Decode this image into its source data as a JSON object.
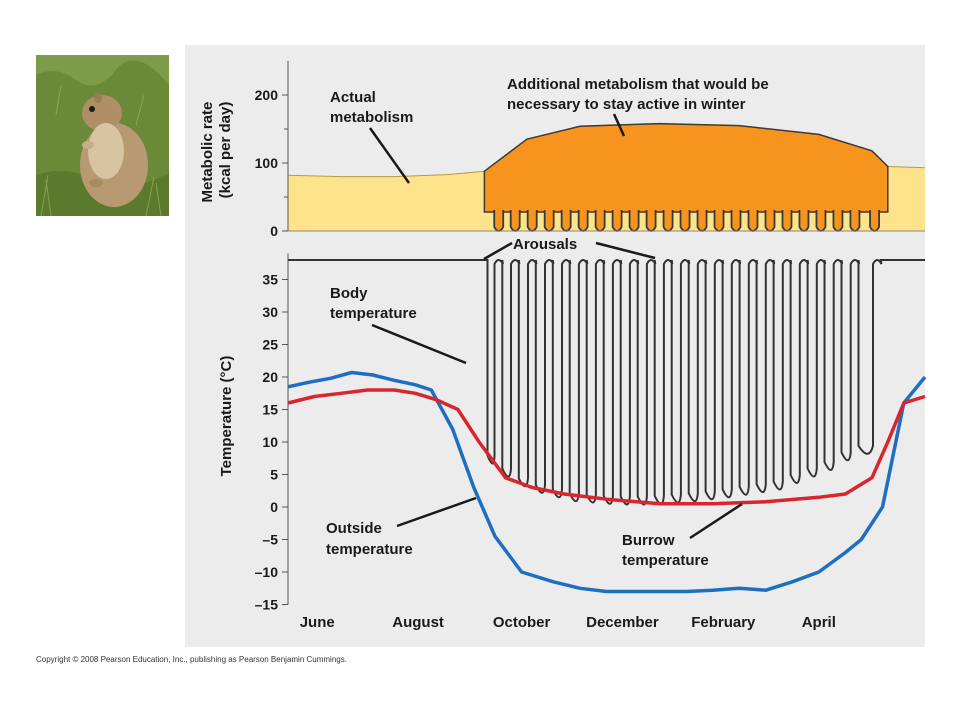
{
  "photo": {
    "subject": "ground-squirrel-photo"
  },
  "copyright": "Copyright © 2008 Pearson Education, Inc., publishing as Pearson Benjamin Cummings.",
  "colors": {
    "panel_bg": "#ececec",
    "actual_fill": "#fde38a",
    "additional_fill": "#f7941d",
    "body_line": "#333333",
    "outside_line": "#1f6fc1",
    "burrow_line": "#d8262e"
  },
  "chart_data": [
    {
      "type": "area",
      "ylabel": "Metabolic rate\n(kcal per day)",
      "yticks": [
        0,
        100,
        200
      ],
      "ylim": [
        0,
        250
      ],
      "x_months": [
        "June",
        "August",
        "October",
        "December",
        "February",
        "April"
      ],
      "xlim": [
        0,
        12
      ],
      "series": [
        {
          "name": "Actual metabolism",
          "x": [
            0,
            1,
            2,
            3,
            3.7,
            4.1,
            12
          ],
          "y": [
            82,
            80,
            80,
            83,
            88,
            0,
            0
          ]
        },
        {
          "name": "Additional metabolism that would be necessary to stay active in winter",
          "x": [
            3.7,
            4.5,
            5.5,
            7,
            8.5,
            10,
            11,
            11.3
          ],
          "y": [
            88,
            135,
            154,
            158,
            155,
            142,
            118,
            95
          ]
        }
      ],
      "actual_winter": {
        "x": [
          11.3,
          12
        ],
        "y": [
          95,
          93
        ]
      },
      "annotations": [
        {
          "text": "Actual\nmetabolism"
        },
        {
          "text": "Additional metabolism that would be\nnecessary to stay active in winter"
        }
      ]
    },
    {
      "type": "line",
      "ylabel": "Temperature (°C)",
      "yticks": [
        -15,
        -10,
        -5,
        0,
        5,
        10,
        15,
        20,
        25,
        30,
        35
      ],
      "ylim": [
        -15,
        39
      ],
      "x_months": [
        "June",
        "August",
        "October",
        "December",
        "February",
        "April"
      ],
      "xlim": [
        0,
        12
      ],
      "series": [
        {
          "name": "Body temperature",
          "active_temp": 38,
          "torpor_start": 3.72,
          "arousals": [
            {
              "x": 3.97,
              "low": 7
            },
            {
              "x": 4.28,
              "low": 5
            },
            {
              "x": 4.6,
              "low": 3.5
            },
            {
              "x": 4.92,
              "low": 2.5
            },
            {
              "x": 5.24,
              "low": 1.8
            },
            {
              "x": 5.56,
              "low": 1.2
            },
            {
              "x": 5.88,
              "low": 1
            },
            {
              "x": 6.2,
              "low": 0.8
            },
            {
              "x": 6.52,
              "low": 0.7
            },
            {
              "x": 6.84,
              "low": 0.7
            },
            {
              "x": 7.16,
              "low": 0.8
            },
            {
              "x": 7.48,
              "low": 1
            },
            {
              "x": 7.8,
              "low": 1.2
            },
            {
              "x": 8.12,
              "low": 1.5
            },
            {
              "x": 8.44,
              "low": 1.8
            },
            {
              "x": 8.76,
              "low": 2.2
            },
            {
              "x": 9.08,
              "low": 2.6
            },
            {
              "x": 9.4,
              "low": 3
            },
            {
              "x": 9.72,
              "low": 4
            },
            {
              "x": 10.04,
              "low": 5
            },
            {
              "x": 10.36,
              "low": 6
            },
            {
              "x": 10.68,
              "low": 7.5
            }
          ],
          "final_low": 8.5,
          "torpor_end": 11.15
        },
        {
          "name": "Outside temperature",
          "x": [
            0,
            0.4,
            0.8,
            1.2,
            1.6,
            2,
            2.4,
            2.7,
            3.1,
            3.5,
            3.9,
            4.4,
            5,
            5.5,
            6,
            6.5,
            7,
            7.5,
            8,
            8.5,
            9,
            9.5,
            10,
            10.5,
            10.8,
            11.2,
            11.6,
            12
          ],
          "y": [
            18.5,
            19.2,
            19.8,
            20.7,
            20.3,
            19.5,
            18.8,
            18,
            12,
            3,
            -4.5,
            -10,
            -11.5,
            -12.5,
            -13,
            -13,
            -13,
            -13,
            -12.8,
            -12.5,
            -12.8,
            -11.5,
            -10,
            -7,
            -5,
            0,
            16,
            20
          ]
        },
        {
          "name": "Burrow temperature",
          "x": [
            0,
            0.5,
            1,
            1.5,
            2,
            2.4,
            2.8,
            3.2,
            3.6,
            4.1,
            4.6,
            5.2,
            6,
            7,
            8,
            9,
            10,
            10.5,
            11,
            11.3,
            11.6,
            12
          ],
          "y": [
            16,
            17,
            17.5,
            18,
            18,
            17.5,
            16.5,
            15,
            10,
            4.5,
            3,
            2,
            1.2,
            0.5,
            0.5,
            0.8,
            1.5,
            2,
            4.5,
            10,
            16,
            17
          ]
        }
      ],
      "annotations": [
        {
          "text": "Arousals"
        },
        {
          "text": "Body\ntemperature"
        },
        {
          "text": "Outside\ntemperature"
        },
        {
          "text": "Burrow\ntemperature"
        }
      ]
    }
  ]
}
